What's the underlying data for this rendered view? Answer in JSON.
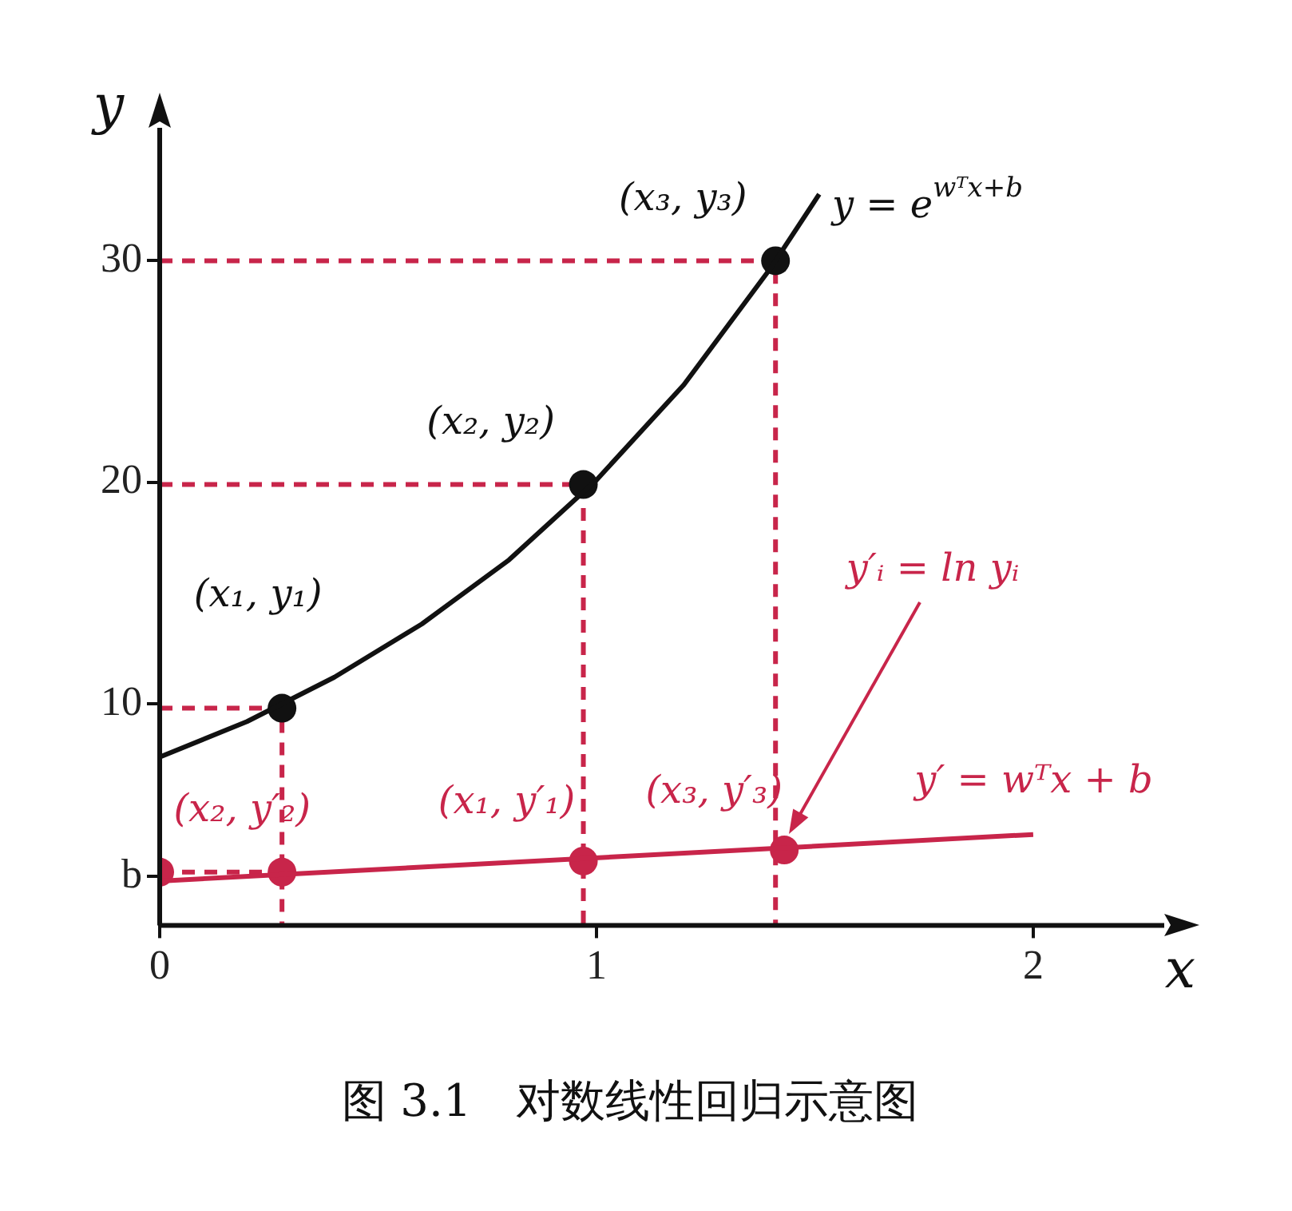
{
  "chart_data": {
    "type": "line",
    "title": "图 3.1　对数线性回归示意图",
    "xlabel": "x",
    "ylabel": "y",
    "xlim": [
      0,
      2.3
    ],
    "ylim": [
      0,
      36
    ],
    "xticks": [
      0,
      1,
      2
    ],
    "yticks": [
      {
        "value": 2.2,
        "label": "b"
      },
      10,
      20,
      30
    ],
    "grid": false,
    "legend": false,
    "series": [
      {
        "color": "#111111",
        "marker": "none",
        "line_style": "solid",
        "x": [
          0,
          0.2,
          0.4,
          0.6,
          0.8,
          1.0,
          1.2,
          1.4,
          1.51
        ],
        "values": [
          7.6,
          9.2,
          11.2,
          13.6,
          16.5,
          20.1,
          24.4,
          29.7,
          33.0
        ]
      },
      {
        "type": "scatter",
        "color": "#111111",
        "marker": "circle",
        "x": [
          0.28,
          0.97,
          1.41
        ],
        "values": [
          9.8,
          19.9,
          30
        ]
      },
      {
        "type": "line",
        "color": "#c8254a",
        "marker": "none",
        "line_style": "solid",
        "x": [
          0,
          2
        ],
        "values": [
          2.0,
          4.1
        ]
      },
      {
        "type": "scatter",
        "color": "#c8254a",
        "marker": "circle",
        "x": [
          0,
          0.28,
          0.97,
          1.43
        ],
        "values": [
          2.4,
          2.4,
          2.9,
          3.4
        ]
      },
      {
        "type": "line",
        "color": "#c8254a",
        "marker": "none",
        "line_style": "dashed",
        "x": [
          0,
          0.28,
          0.28
        ],
        "values": [
          9.8,
          9.8,
          0
        ]
      },
      {
        "type": "line",
        "color": "#c8254a",
        "marker": "none",
        "line_style": "dashed",
        "x": [
          0,
          0.97,
          0.97
        ],
        "values": [
          19.9,
          19.9,
          0
        ]
      },
      {
        "type": "line",
        "color": "#c8254a",
        "marker": "none",
        "line_style": "dashed",
        "x": [
          0,
          1.41,
          1.41
        ],
        "values": [
          30,
          30,
          0
        ]
      },
      {
        "type": "line",
        "color": "#c8254a",
        "marker": "none",
        "line_style": "dashed",
        "x": [
          0,
          0.28
        ],
        "values": [
          2.4,
          2.4
        ]
      }
    ],
    "annotations": [
      {
        "text": "(x₁, y₁)",
        "x": 0.28,
        "y": 9.8
      },
      {
        "text": "(x₂, y₂)",
        "x": 0.97,
        "y": 19.9
      },
      {
        "text": "(x₃, y₃)",
        "x": 1.41,
        "y": 30
      },
      {
        "text": "y = e$^{wᵀx+b}$",
        "x": 1.51,
        "y": 33
      },
      {
        "text": "(x₂, y′₂)",
        "x": 0.28,
        "y": 2.4
      },
      {
        "text": "(x₁, y′₁)",
        "x": 0.97,
        "y": 2.9
      },
      {
        "text": "(x₃, y′₃)",
        "x": 1.43,
        "y": 3.4
      },
      {
        "text": "y′ = wᵀx + b",
        "x": 1.8,
        "y": 3.7
      },
      "y′ᵢ = ln yᵢ"
    ]
  }
}
